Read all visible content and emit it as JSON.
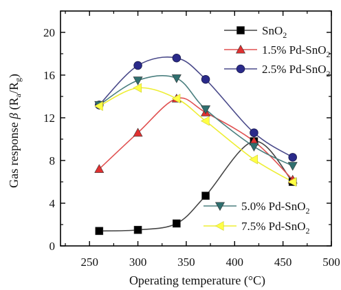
{
  "chart_data": {
    "type": "line",
    "xlabel": "Operating temperature (°C)",
    "ylabel_parts": {
      "prefix": "Gas response ",
      "symbol": "β",
      "open": " (R",
      "sub_a": "a",
      "slash": "/R",
      "sub_g": "g",
      "close": ")"
    },
    "xlim": [
      220,
      500
    ],
    "ylim": [
      0,
      22
    ],
    "x_ticks": [
      250,
      300,
      350,
      400,
      450,
      500
    ],
    "y_ticks": [
      0,
      4,
      8,
      12,
      16,
      20
    ],
    "series": [
      {
        "name": "SnO2",
        "name_parts": {
          "base": "SnO",
          "sub": "2",
          "tail": ""
        },
        "color": "#000000",
        "line_color": "#444444",
        "marker": "square",
        "x": [
          260,
          300,
          340,
          370,
          420,
          460
        ],
        "y": [
          1.4,
          1.5,
          2.1,
          4.7,
          9.8,
          6.0
        ]
      },
      {
        "name": "1.5% Pd-SnO2",
        "name_parts": {
          "base": "1.5% Pd-SnO",
          "sub": "2",
          "tail": ""
        },
        "color": "#e03030",
        "line_color": "#e05050",
        "marker": "triangle-up",
        "x": [
          260,
          300,
          340,
          370,
          420,
          460
        ],
        "y": [
          7.2,
          10.6,
          13.8,
          12.5,
          9.8,
          6.2
        ]
      },
      {
        "name": "2.5% Pd-SnO2",
        "name_parts": {
          "base": "2.5% Pd-SnO",
          "sub": "2",
          "tail": ""
        },
        "color": "#2a2a8a",
        "line_color": "#4a4a8a",
        "marker": "circle",
        "x": [
          260,
          300,
          340,
          370,
          420,
          460
        ],
        "y": [
          13.2,
          16.9,
          17.6,
          15.6,
          10.6,
          8.3
        ]
      },
      {
        "name": "5.0% Pd-SnO2",
        "name_parts": {
          "base": "5.0% Pd-SnO",
          "sub": "2",
          "tail": ""
        },
        "color": "#2f6f6f",
        "line_color": "#4a7f7f",
        "marker": "triangle-down",
        "x": [
          260,
          300,
          340,
          370,
          420,
          460
        ],
        "y": [
          13.2,
          15.5,
          15.7,
          12.8,
          9.3,
          7.5
        ]
      },
      {
        "name": "7.5% Pd-SnO2",
        "name_parts": {
          "base": "7.5% Pd-SnO",
          "sub": "2",
          "tail": ""
        },
        "color": "#ffff44",
        "line_color": "#eeee33",
        "marker": "triangle-left",
        "x": [
          260,
          300,
          340,
          370,
          420,
          460
        ],
        "y": [
          13.1,
          14.8,
          13.8,
          11.7,
          8.1,
          6.0
        ]
      }
    ],
    "legend_placement": [
      "top-right",
      "bottom-right"
    ]
  }
}
